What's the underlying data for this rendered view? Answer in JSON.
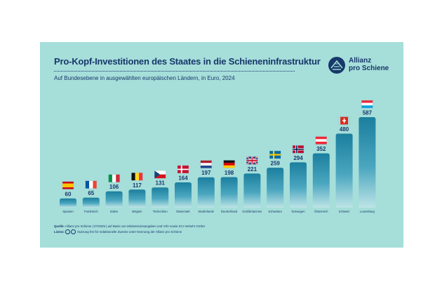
{
  "header": {
    "title": "Pro-Kopf-Investitionen des Staates in die Schieneninfrastruktur",
    "subtitle": "Auf Bundesebene in ausgewählten europäischen Ländern, in Euro, 2024"
  },
  "logo": {
    "line1": "Allianz",
    "line2": "pro Schiene",
    "icon": "allianz-pro-schiene-logo-icon"
  },
  "footer": {
    "source_label": "Quelle:",
    "source_text": "Allianz pro Schiene | 07/2025 | auf Basis von Ministeriumsangaben und VdV sowie SCI Verkehr GmbH",
    "license_label": "Lizenz:",
    "license_text": "Nutzung frei für redaktionelle Zwecke unter Nennung der Allianz pro Schiene"
  },
  "colors": {
    "background": "#a6deda",
    "bar_top": "#1b7f9e",
    "bar_bottom": "#bde4e6",
    "text": "#17386a"
  },
  "chart_data": {
    "type": "bar",
    "title": "Pro-Kopf-Investitionen des Staates in die Schieneninfrastruktur",
    "subtitle": "Auf Bundesebene in ausgewählten europäischen Ländern, in Euro, 2024",
    "categories": [
      "Spanien",
      "Frankreich",
      "Italien",
      "Belgien",
      "Tschechien",
      "Dänemark",
      "Niederlande",
      "Deutschland",
      "Großbritannien",
      "Schweden",
      "Norwegen",
      "Österreich",
      "Schweiz",
      "Luxemburg"
    ],
    "values": [
      60,
      65,
      106,
      117,
      131,
      164,
      197,
      198,
      221,
      259,
      294,
      352,
      480,
      587
    ],
    "flags": [
      "es",
      "fr",
      "it",
      "be",
      "cz",
      "dk",
      "nl",
      "de",
      "gb",
      "se",
      "no",
      "at",
      "ch",
      "lu"
    ],
    "ylim": [
      0,
      600
    ],
    "grid": false,
    "legend": "none"
  }
}
